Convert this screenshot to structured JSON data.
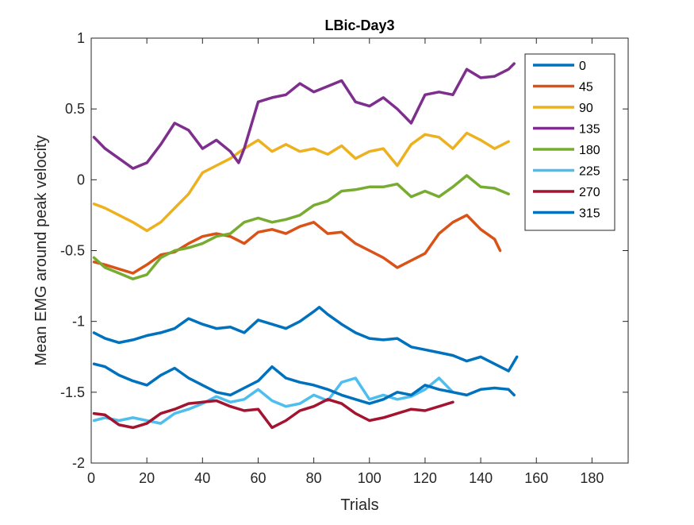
{
  "chart_data": {
    "type": "line",
    "title": "LBic-Day3",
    "xlabel": "Trials",
    "ylabel": "Mean EMG around peak velocity",
    "xlim": [
      0,
      193
    ],
    "ylim": [
      -2,
      1
    ],
    "xticks": [
      0,
      20,
      40,
      60,
      80,
      100,
      120,
      140,
      160,
      180
    ],
    "yticks": [
      1,
      0.5,
      0,
      -0.5,
      -1,
      -1.5,
      -2
    ],
    "grid": false,
    "legend_position": "top-right",
    "series": [
      {
        "name": "0",
        "color": "#0072BD",
        "x": [
          1,
          5,
          10,
          15,
          20,
          25,
          30,
          35,
          40,
          45,
          50,
          55,
          60,
          65,
          70,
          75,
          80,
          82,
          85,
          90,
          95,
          100,
          105,
          110,
          115,
          120,
          125,
          130,
          135,
          140,
          145,
          150,
          153
        ],
        "y": [
          -1.08,
          -1.12,
          -1.15,
          -1.13,
          -1.1,
          -1.08,
          -1.05,
          -0.98,
          -1.02,
          -1.05,
          -1.04,
          -1.08,
          -0.99,
          -1.02,
          -1.05,
          -1.0,
          -0.93,
          -0.9,
          -0.95,
          -1.02,
          -1.08,
          -1.12,
          -1.13,
          -1.12,
          -1.18,
          -1.2,
          -1.22,
          -1.24,
          -1.28,
          -1.25,
          -1.3,
          -1.35,
          -1.25
        ]
      },
      {
        "name": "45",
        "color": "#D95319",
        "x": [
          1,
          5,
          10,
          15,
          20,
          25,
          30,
          35,
          40,
          45,
          50,
          55,
          60,
          65,
          70,
          75,
          80,
          85,
          90,
          95,
          100,
          105,
          110,
          115,
          120,
          125,
          130,
          135,
          140,
          145,
          147
        ],
        "y": [
          -0.58,
          -0.6,
          -0.63,
          -0.66,
          -0.6,
          -0.53,
          -0.51,
          -0.45,
          -0.4,
          -0.38,
          -0.4,
          -0.45,
          -0.37,
          -0.35,
          -0.38,
          -0.33,
          -0.3,
          -0.38,
          -0.37,
          -0.45,
          -0.5,
          -0.55,
          -0.62,
          -0.57,
          -0.52,
          -0.38,
          -0.3,
          -0.25,
          -0.35,
          -0.42,
          -0.5
        ]
      },
      {
        "name": "90",
        "color": "#EDB120",
        "x": [
          1,
          5,
          10,
          15,
          20,
          25,
          30,
          35,
          40,
          45,
          50,
          55,
          60,
          65,
          70,
          75,
          80,
          85,
          90,
          95,
          100,
          105,
          110,
          115,
          120,
          125,
          130,
          135,
          140,
          145,
          150
        ],
        "y": [
          -0.17,
          -0.2,
          -0.25,
          -0.3,
          -0.36,
          -0.3,
          -0.2,
          -0.1,
          0.05,
          0.1,
          0.15,
          0.22,
          0.28,
          0.2,
          0.25,
          0.2,
          0.22,
          0.18,
          0.24,
          0.15,
          0.2,
          0.22,
          0.1,
          0.25,
          0.32,
          0.3,
          0.22,
          0.33,
          0.28,
          0.22,
          0.27
        ]
      },
      {
        "name": "135",
        "color": "#7E2F8E",
        "x": [
          1,
          5,
          10,
          15,
          20,
          25,
          30,
          35,
          40,
          45,
          50,
          53,
          55,
          60,
          65,
          70,
          75,
          80,
          85,
          90,
          95,
          100,
          105,
          110,
          115,
          120,
          125,
          130,
          135,
          140,
          145,
          150,
          152
        ],
        "y": [
          0.3,
          0.22,
          0.15,
          0.08,
          0.12,
          0.25,
          0.4,
          0.35,
          0.22,
          0.28,
          0.2,
          0.12,
          0.22,
          0.55,
          0.58,
          0.6,
          0.68,
          0.62,
          0.66,
          0.7,
          0.55,
          0.52,
          0.58,
          0.5,
          0.4,
          0.6,
          0.62,
          0.6,
          0.78,
          0.72,
          0.73,
          0.78,
          0.82
        ]
      },
      {
        "name": "180",
        "color": "#77AC30",
        "x": [
          1,
          5,
          10,
          15,
          20,
          25,
          30,
          35,
          40,
          45,
          50,
          55,
          60,
          65,
          70,
          75,
          80,
          85,
          90,
          95,
          100,
          105,
          110,
          115,
          120,
          125,
          130,
          135,
          140,
          145,
          150
        ],
        "y": [
          -0.55,
          -0.62,
          -0.66,
          -0.7,
          -0.67,
          -0.55,
          -0.5,
          -0.48,
          -0.45,
          -0.4,
          -0.38,
          -0.3,
          -0.27,
          -0.3,
          -0.28,
          -0.25,
          -0.18,
          -0.15,
          -0.08,
          -0.07,
          -0.05,
          -0.05,
          -0.03,
          -0.12,
          -0.08,
          -0.12,
          -0.05,
          0.03,
          -0.05,
          -0.06,
          -0.1
        ]
      },
      {
        "name": "225",
        "color": "#4DBEEE",
        "x": [
          1,
          5,
          10,
          15,
          20,
          25,
          30,
          35,
          40,
          45,
          50,
          55,
          60,
          65,
          70,
          75,
          80,
          85,
          90,
          95,
          100,
          105,
          110,
          115,
          120,
          125,
          130
        ],
        "y": [
          -1.7,
          -1.68,
          -1.7,
          -1.68,
          -1.7,
          -1.72,
          -1.65,
          -1.62,
          -1.58,
          -1.53,
          -1.57,
          -1.55,
          -1.48,
          -1.56,
          -1.6,
          -1.58,
          -1.52,
          -1.56,
          -1.43,
          -1.4,
          -1.55,
          -1.52,
          -1.55,
          -1.53,
          -1.48,
          -1.4,
          -1.5
        ]
      },
      {
        "name": "270",
        "color": "#A2142F",
        "x": [
          1,
          5,
          10,
          15,
          20,
          25,
          30,
          35,
          40,
          45,
          50,
          55,
          60,
          65,
          70,
          75,
          80,
          85,
          90,
          95,
          100,
          105,
          110,
          115,
          120,
          125,
          130
        ],
        "y": [
          -1.65,
          -1.66,
          -1.73,
          -1.75,
          -1.72,
          -1.65,
          -1.62,
          -1.58,
          -1.57,
          -1.56,
          -1.6,
          -1.63,
          -1.62,
          -1.75,
          -1.7,
          -1.63,
          -1.6,
          -1.55,
          -1.58,
          -1.65,
          -1.7,
          -1.68,
          -1.65,
          -1.62,
          -1.63,
          -1.6,
          -1.57
        ]
      },
      {
        "name": "315",
        "color": "#0072BD",
        "x": [
          1,
          5,
          10,
          15,
          20,
          25,
          30,
          35,
          40,
          45,
          50,
          55,
          60,
          65,
          70,
          75,
          80,
          85,
          90,
          95,
          100,
          105,
          110,
          115,
          120,
          125,
          130,
          135,
          140,
          145,
          150,
          152
        ],
        "y": [
          -1.3,
          -1.32,
          -1.38,
          -1.42,
          -1.45,
          -1.38,
          -1.33,
          -1.4,
          -1.45,
          -1.5,
          -1.52,
          -1.47,
          -1.42,
          -1.32,
          -1.4,
          -1.43,
          -1.45,
          -1.48,
          -1.52,
          -1.55,
          -1.58,
          -1.55,
          -1.5,
          -1.52,
          -1.45,
          -1.48,
          -1.5,
          -1.52,
          -1.48,
          -1.47,
          -1.48,
          -1.52
        ]
      }
    ]
  }
}
